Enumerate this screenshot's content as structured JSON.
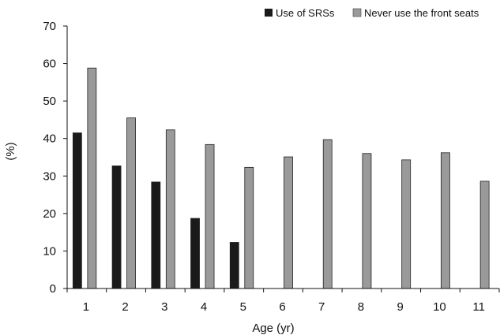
{
  "chart_data": {
    "type": "bar",
    "title": "",
    "xlabel": "Age (yr)",
    "ylabel": "(%)",
    "ylim": [
      0,
      70
    ],
    "yticks": [
      0,
      10,
      20,
      30,
      40,
      50,
      60,
      70
    ],
    "grid": false,
    "legend_position": "top-right",
    "categories": [
      "1",
      "2",
      "3",
      "4",
      "5",
      "6",
      "7",
      "8",
      "9",
      "10",
      "11"
    ],
    "series": [
      {
        "name": "Use of SRSs",
        "color": "#1a1a1a",
        "values": [
          41.5,
          32.7,
          28.4,
          18.7,
          12.3,
          null,
          null,
          null,
          null,
          null,
          null
        ]
      },
      {
        "name": "Never use the front seats",
        "color": "#9a9a9a",
        "values": [
          58.8,
          45.5,
          42.3,
          38.4,
          32.3,
          35.1,
          39.7,
          36.0,
          34.3,
          36.2,
          28.6
        ]
      }
    ]
  }
}
